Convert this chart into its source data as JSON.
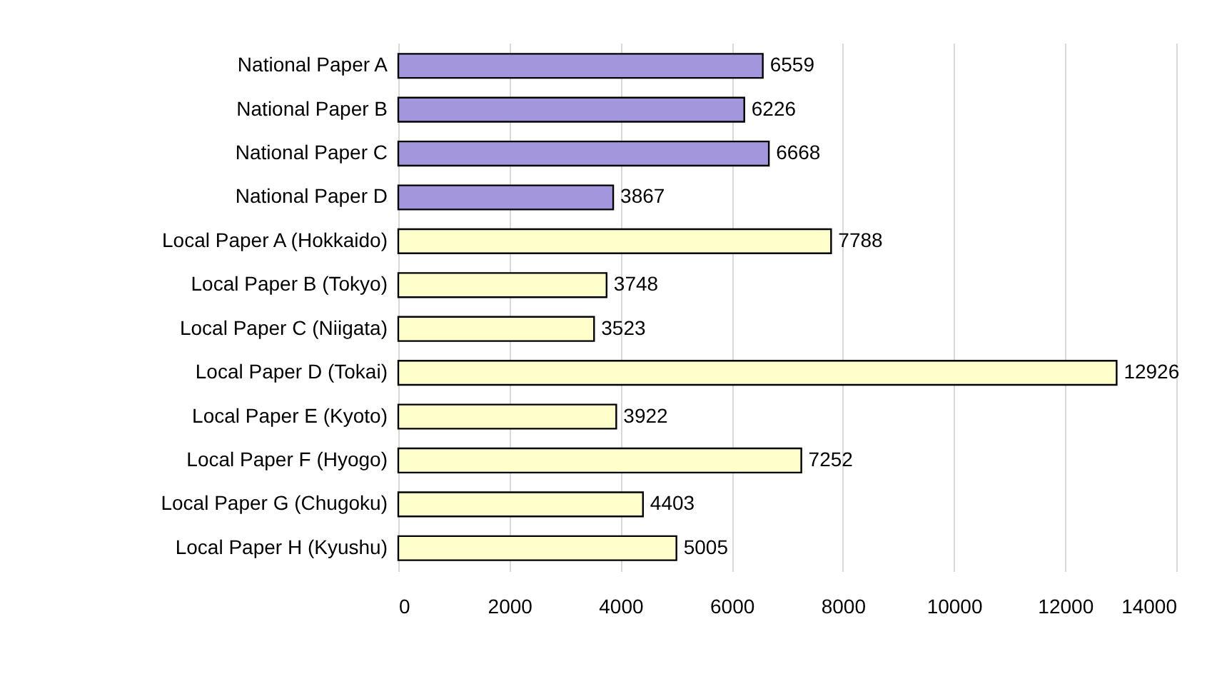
{
  "chart_data": {
    "type": "bar",
    "orientation": "horizontal",
    "categories": [
      "National Paper A",
      "National Paper B",
      "National Paper C",
      "National Paper D",
      "Local Paper A (Hokkaido)",
      "Local Paper B (Tokyo)",
      "Local Paper C (Niigata)",
      "Local Paper D (Tokai)",
      "Local Paper E (Kyoto)",
      "Local Paper F (Hyogo)",
      "Local Paper G (Chugoku)",
      "Local Paper H (Kyushu)"
    ],
    "values": [
      6559,
      6226,
      6668,
      3867,
      7788,
      3748,
      3523,
      12926,
      3922,
      7252,
      4403,
      5005
    ],
    "colors": [
      "#a496dc",
      "#a496dc",
      "#a496dc",
      "#a496dc",
      "#ffffcc",
      "#ffffcc",
      "#ffffcc",
      "#ffffcc",
      "#ffffcc",
      "#ffffcc",
      "#ffffcc",
      "#ffffcc"
    ],
    "xlim": [
      0,
      14000
    ],
    "xticks": [
      0,
      2000,
      4000,
      6000,
      8000,
      10000,
      12000,
      14000
    ],
    "grid": "x",
    "data_labels": true
  }
}
